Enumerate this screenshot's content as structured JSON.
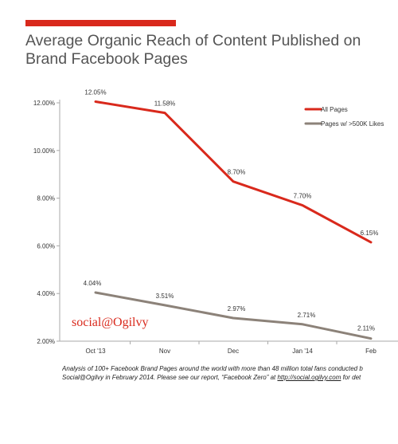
{
  "header": {
    "title_line1": "Average Organic Reach of Content Published on",
    "title_line2": "Brand Facebook Pages"
  },
  "brand": {
    "logo_text": "social@Ogilvy"
  },
  "footnote": {
    "line1": "Analysis of 100+ Facebook Brand Pages around the world with more than 48 million total fans conducted b",
    "line2_pre": "Social@Ogilvy in February 2014. Please see our report, “Facebook Zero” at ",
    "line2_link": "http://social.ogilvy.com",
    "line2_post": " for det"
  },
  "chart_data": {
    "type": "line",
    "categories": [
      "Oct '13",
      "Nov",
      "Dec",
      "Jan '14",
      "Feb"
    ],
    "ylim": [
      2,
      12
    ],
    "yticks": [
      "2.00%",
      "4.00%",
      "6.00%",
      "8.00%",
      "10.00%",
      "12.00%"
    ],
    "ytick_values": [
      2,
      4,
      6,
      8,
      10,
      12
    ],
    "grid": false,
    "legend_position": "top-right",
    "series": [
      {
        "name": "All Pages",
        "color": "#d9291c",
        "values": [
          12.05,
          11.58,
          8.7,
          7.7,
          6.15
        ],
        "labels": [
          "12.05%",
          "11.58%",
          "8.70%",
          "7.70%",
          "6.15%"
        ]
      },
      {
        "name": "Pages w/ >500K Likes",
        "color": "#8c8279",
        "values": [
          4.04,
          3.51,
          2.97,
          2.71,
          2.11
        ],
        "labels": [
          "4.04%",
          "3.51%",
          "2.97%",
          "2.71%",
          "2.11%"
        ]
      }
    ]
  }
}
